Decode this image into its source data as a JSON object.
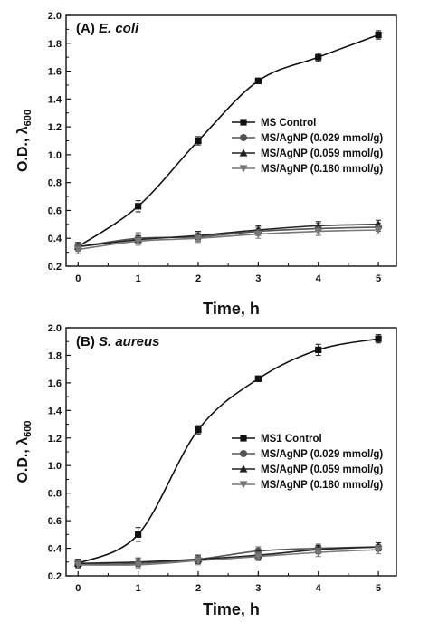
{
  "chart_data": [
    {
      "type": "line",
      "panel_label": "(A)",
      "organism": "E. coli",
      "xlabel": "Time, h",
      "ylabel_main": "O.D., λ",
      "ylabel_sub": "600",
      "xlim": [
        -0.2,
        5.3
      ],
      "ylim": [
        0.2,
        2.0
      ],
      "xticks": [
        0,
        1,
        2,
        3,
        4,
        5
      ],
      "yticks": [
        0.2,
        0.4,
        0.6,
        0.8,
        1.0,
        1.2,
        1.4,
        1.6,
        1.8,
        2.0
      ],
      "ytick_labels": [
        "0.2",
        "0.4",
        "0.6",
        "0.8",
        "1.0",
        "1.2",
        "1.4",
        "1.6",
        "1.8",
        "2.0"
      ],
      "legend_position": "middle-right",
      "series": [
        {
          "name": "MS Control",
          "marker": "square",
          "color": "#111111",
          "x": [
            0,
            1,
            2,
            3,
            4,
            5
          ],
          "y": [
            0.34,
            0.63,
            1.1,
            1.53,
            1.7,
            1.86
          ],
          "err": [
            0.03,
            0.04,
            0.03,
            0.02,
            0.03,
            0.03
          ]
        },
        {
          "name": "MS/AgNP (0.029 mmol/g)",
          "marker": "circle",
          "color": "#555555",
          "x": [
            0,
            1,
            2,
            3,
            4,
            5
          ],
          "y": [
            0.34,
            0.4,
            0.41,
            0.45,
            0.47,
            0.48
          ],
          "err": [
            0.03,
            0.04,
            0.03,
            0.03,
            0.04,
            0.03
          ]
        },
        {
          "name": "MS/AgNP (0.059 mmol/g)",
          "marker": "triangle-up",
          "color": "#222222",
          "x": [
            0,
            1,
            2,
            3,
            4,
            5
          ],
          "y": [
            0.34,
            0.39,
            0.42,
            0.46,
            0.49,
            0.5
          ],
          "err": [
            0.03,
            0.03,
            0.03,
            0.03,
            0.03,
            0.03
          ]
        },
        {
          "name": "MS/AgNP (0.180 mmol/g)",
          "marker": "triangle-down",
          "color": "#777777",
          "x": [
            0,
            1,
            2,
            3,
            4,
            5
          ],
          "y": [
            0.32,
            0.38,
            0.4,
            0.43,
            0.45,
            0.46
          ],
          "err": [
            0.03,
            0.03,
            0.03,
            0.03,
            0.03,
            0.03
          ]
        }
      ]
    },
    {
      "type": "line",
      "panel_label": "(B)",
      "organism": "S. aureus",
      "xlabel": "Time, h",
      "ylabel_main": "O.D., λ",
      "ylabel_sub": "600",
      "xlim": [
        -0.2,
        5.3
      ],
      "ylim": [
        0.2,
        2.0
      ],
      "xticks": [
        0,
        1,
        2,
        3,
        4,
        5
      ],
      "yticks": [
        0.2,
        0.4,
        0.6,
        0.8,
        1.0,
        1.2,
        1.4,
        1.6,
        1.8,
        2.0
      ],
      "ytick_labels": [
        "0.2",
        "0.4",
        "0.6",
        "0.8",
        "1.0",
        "1.2",
        "1.4",
        "1.6",
        "1.8",
        "2.0"
      ],
      "legend_position": "middle-right",
      "series": [
        {
          "name": "MS1 Control",
          "marker": "square",
          "color": "#111111",
          "x": [
            0,
            1,
            2,
            3,
            4,
            5
          ],
          "y": [
            0.29,
            0.5,
            1.26,
            1.63,
            1.84,
            1.92
          ],
          "err": [
            0.03,
            0.05,
            0.03,
            0.02,
            0.04,
            0.03
          ]
        },
        {
          "name": "MS/AgNP (0.029 mmol/g)",
          "marker": "circle",
          "color": "#555555",
          "x": [
            0,
            1,
            2,
            3,
            4,
            5
          ],
          "y": [
            0.28,
            0.29,
            0.32,
            0.38,
            0.4,
            0.41
          ],
          "err": [
            0.03,
            0.03,
            0.03,
            0.03,
            0.03,
            0.03
          ]
        },
        {
          "name": "MS/AgNP (0.059 mmol/g)",
          "marker": "triangle-up",
          "color": "#222222",
          "x": [
            0,
            1,
            2,
            3,
            4,
            5
          ],
          "y": [
            0.29,
            0.3,
            0.32,
            0.35,
            0.39,
            0.41
          ],
          "err": [
            0.03,
            0.03,
            0.03,
            0.03,
            0.03,
            0.03
          ]
        },
        {
          "name": "MS/AgNP (0.180 mmol/g)",
          "marker": "triangle-down",
          "color": "#777777",
          "x": [
            0,
            1,
            2,
            3,
            4,
            5
          ],
          "y": [
            0.28,
            0.28,
            0.31,
            0.34,
            0.37,
            0.39
          ],
          "err": [
            0.03,
            0.03,
            0.03,
            0.03,
            0.03,
            0.03
          ]
        }
      ]
    }
  ]
}
